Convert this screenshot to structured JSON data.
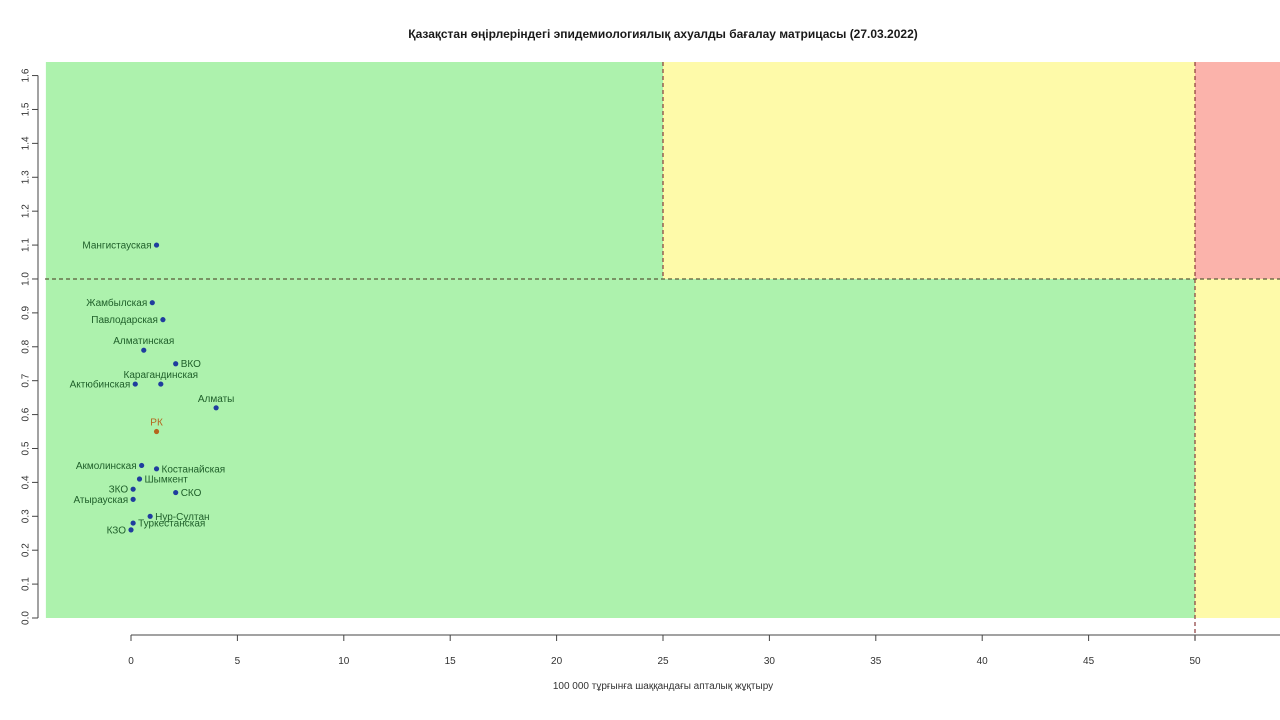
{
  "chart_data": {
    "type": "scatter",
    "title": "Қазақстан өңірлеріндегі эпидемиологиялық ахуалды бағалау матрицасы  (27.03.2022)",
    "xlabel": "100 000 тұрғынға шаққандағы апталық жұқтыру",
    "ylabel": "",
    "xlim": [
      -4,
      54
    ],
    "ylim": [
      0,
      1.64
    ],
    "x_ticks": [
      0,
      5,
      10,
      15,
      20,
      25,
      30,
      35,
      40,
      45,
      50
    ],
    "y_ticks": [
      "0.0",
      "0.1",
      "0.2",
      "0.3",
      "0.4",
      "0.5",
      "0.6",
      "0.7",
      "0.8",
      "0.9",
      "1.0",
      "1.1",
      "1.2",
      "1.3",
      "1.4",
      "1.5",
      "1.6"
    ],
    "zones": [
      {
        "color": "#adf2ad",
        "x": [
          -4,
          25
        ],
        "y": [
          1.0,
          1.64
        ]
      },
      {
        "color": "#fefaa9",
        "x": [
          25,
          50
        ],
        "y": [
          1.0,
          1.64
        ]
      },
      {
        "color": "#fbb3ab",
        "x": [
          50,
          54
        ],
        "y": [
          1.0,
          1.64
        ]
      },
      {
        "color": "#adf2ad",
        "x": [
          -4,
          50
        ],
        "y": [
          0,
          1.0
        ]
      },
      {
        "color": "#fefaa9",
        "x": [
          50,
          54
        ],
        "y": [
          0,
          1.0
        ]
      }
    ],
    "reference_lines": {
      "x": [
        25,
        50
      ],
      "y": [
        1.0
      ]
    },
    "point_color": "#1f3d9e",
    "highlight_color": "#b5651d",
    "points": [
      {
        "label": "Мангистауская",
        "x": 1.2,
        "y": 1.1,
        "side": "left"
      },
      {
        "label": "Жамбылская",
        "x": 1.0,
        "y": 0.93,
        "side": "left"
      },
      {
        "label": "Павлодарская",
        "x": 1.5,
        "y": 0.88,
        "side": "left"
      },
      {
        "label": "Алматинская",
        "x": 0.6,
        "y": 0.79,
        "side": "above"
      },
      {
        "label": "ВКО",
        "x": 2.1,
        "y": 0.75,
        "side": "right"
      },
      {
        "label": "Карагандинская",
        "x": 1.4,
        "y": 0.69,
        "side": "above"
      },
      {
        "label": "Актюбинская",
        "x": 0.2,
        "y": 0.69,
        "side": "left"
      },
      {
        "label": "Алматы",
        "x": 4.0,
        "y": 0.62,
        "side": "above"
      },
      {
        "label": "РК",
        "x": 1.2,
        "y": 0.55,
        "side": "above",
        "highlight": true
      },
      {
        "label": "Акмолинская",
        "x": 0.5,
        "y": 0.45,
        "side": "left"
      },
      {
        "label": "Костанайская",
        "x": 1.2,
        "y": 0.44,
        "side": "right"
      },
      {
        "label": "Шымкент",
        "x": 0.4,
        "y": 0.41,
        "side": "right"
      },
      {
        "label": "ЗКО",
        "x": 0.1,
        "y": 0.38,
        "side": "left"
      },
      {
        "label": "СКО",
        "x": 2.1,
        "y": 0.37,
        "side": "right"
      },
      {
        "label": "Атырауская",
        "x": 0.1,
        "y": 0.35,
        "side": "left"
      },
      {
        "label": "Нур-Султан",
        "x": 0.9,
        "y": 0.3,
        "side": "right"
      },
      {
        "label": "Туркестанская",
        "x": 0.1,
        "y": 0.28,
        "side": "right"
      },
      {
        "label": "КЗО",
        "x": 0.0,
        "y": 0.26,
        "side": "left"
      }
    ]
  }
}
